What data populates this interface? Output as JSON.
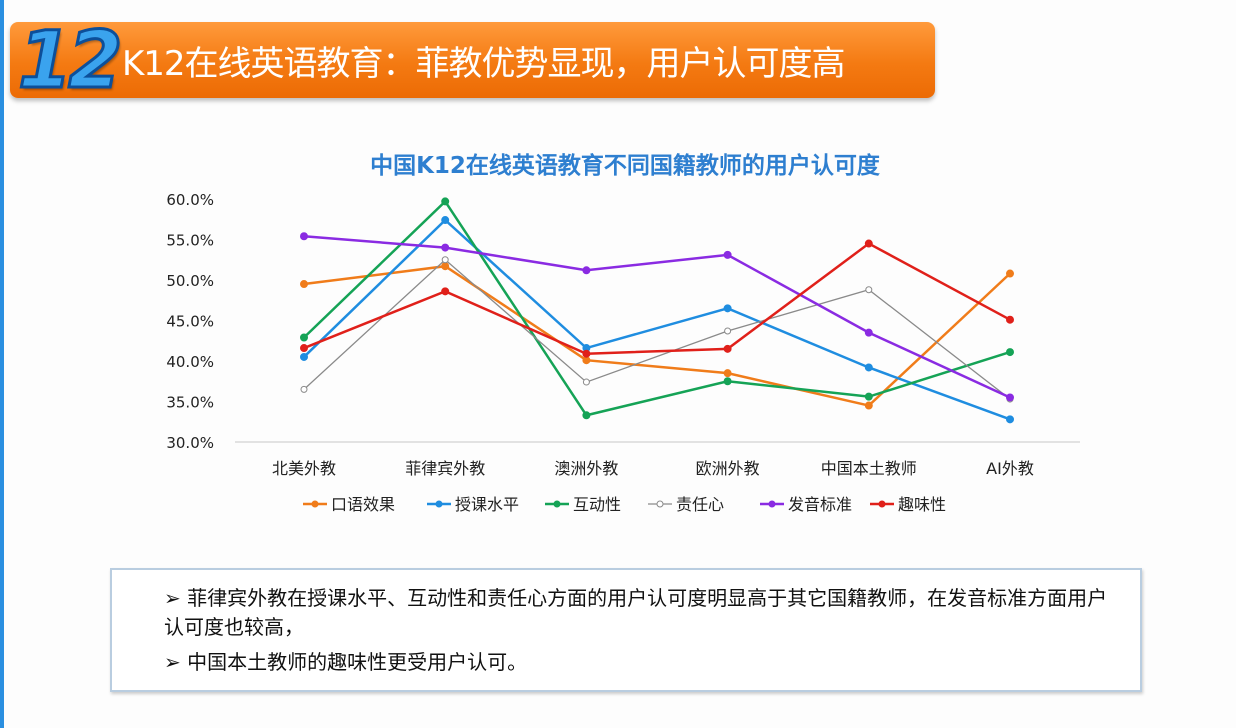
{
  "header": {
    "number": "12",
    "title": "K12在线英语教育：菲教优势显现，用户认可度高"
  },
  "chart_data": {
    "type": "line",
    "title": "中国K12在线英语教育不同国籍教师的用户认可度",
    "categories": [
      "北美外教",
      "菲律宾外教",
      "澳洲外教",
      "欧洲外教",
      "中国本土教师",
      "AI外教"
    ],
    "ylim": [
      30,
      60
    ],
    "yticks": [
      "30.0%",
      "35.0%",
      "40.0%",
      "45.0%",
      "50.0%",
      "55.0%",
      "60.0%"
    ],
    "legend": "bottom",
    "grid": false,
    "series": [
      {
        "name": "口语效果",
        "color": "#f07c1a",
        "marker": "filled",
        "values": [
          49.5,
          51.7,
          40.1,
          38.5,
          34.5,
          50.8
        ]
      },
      {
        "name": "授课水平",
        "color": "#1f8de0",
        "marker": "filled",
        "values": [
          40.5,
          57.4,
          41.6,
          46.5,
          39.2,
          32.8
        ]
      },
      {
        "name": "互动性",
        "color": "#15a356",
        "marker": "filled",
        "values": [
          42.9,
          59.7,
          33.3,
          37.5,
          35.6,
          41.1
        ]
      },
      {
        "name": "责任心",
        "color": "#8a8a8a",
        "marker": "hollow",
        "values": [
          36.5,
          52.5,
          37.4,
          43.7,
          48.8,
          35.3
        ]
      },
      {
        "name": "发音标准",
        "color": "#8a2be2",
        "marker": "filled",
        "values": [
          55.4,
          54.0,
          51.2,
          53.1,
          43.5,
          35.5
        ]
      },
      {
        "name": "趣味性",
        "color": "#e0201a",
        "marker": "filled",
        "values": [
          41.6,
          48.6,
          40.9,
          41.5,
          54.5,
          45.1
        ]
      }
    ]
  },
  "notes": [
    "➢  菲律宾外教在授课水平、互动性和责任心方面的用户认可度明显高于其它国籍教师，在发音标准方面用户认可度也较高，",
    "➢  中国本土教师的趣味性更受用户认可。"
  ]
}
